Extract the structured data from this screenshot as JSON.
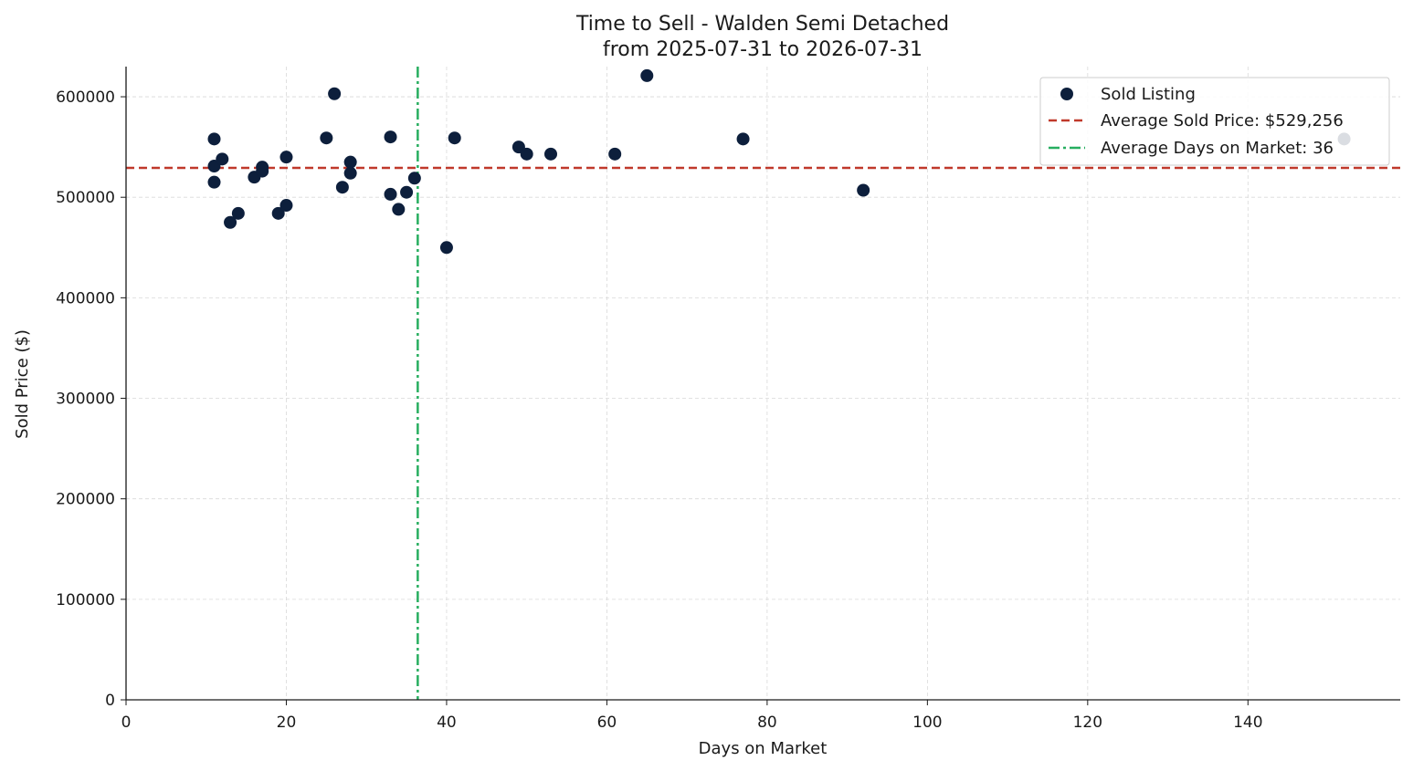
{
  "chart_data": {
    "type": "scatter",
    "title": "Time to Sell - Walden Semi Detached",
    "subtitle": "from 2025-07-31 to 2026-07-31",
    "xlabel": "Days on Market",
    "ylabel": "Sold Price ($)",
    "xlim": [
      0,
      159
    ],
    "ylim": [
      0,
      630000
    ],
    "xticks": [
      0,
      20,
      40,
      60,
      80,
      100,
      120,
      140
    ],
    "yticks": [
      0,
      100000,
      200000,
      300000,
      400000,
      500000,
      600000
    ],
    "xtick_labels": [
      "0",
      "20",
      "40",
      "60",
      "80",
      "100",
      "120",
      "140"
    ],
    "ytick_labels": [
      "0",
      "100000",
      "200000",
      "300000",
      "400000",
      "500000",
      "600000"
    ],
    "grid": true,
    "legend_position": "top-right",
    "colors": {
      "points": "#0d1f3c",
      "avg_price_line": "#c0392b",
      "avg_days_line": "#27ae60",
      "grid": "#d9d9d9",
      "axis": "#1a1a1a"
    },
    "series": [
      {
        "name": "Sold Listing",
        "points": [
          [
            11,
            558000
          ],
          [
            11,
            531000
          ],
          [
            11,
            515000
          ],
          [
            12,
            538000
          ],
          [
            13,
            475000
          ],
          [
            14,
            484000
          ],
          [
            16,
            520000
          ],
          [
            17,
            530000
          ],
          [
            17,
            526000
          ],
          [
            19,
            484000
          ],
          [
            20,
            540000
          ],
          [
            20,
            492000
          ],
          [
            25,
            559000
          ],
          [
            26,
            603000
          ],
          [
            27,
            510000
          ],
          [
            28,
            535000
          ],
          [
            28,
            524000
          ],
          [
            33,
            560000
          ],
          [
            33,
            503000
          ],
          [
            34,
            488000
          ],
          [
            35,
            505000
          ],
          [
            36,
            519000
          ],
          [
            40,
            450000
          ],
          [
            41,
            559000
          ],
          [
            49,
            550000
          ],
          [
            50,
            543000
          ],
          [
            53,
            543000
          ],
          [
            61,
            543000
          ],
          [
            65,
            621000
          ],
          [
            77,
            558000
          ],
          [
            92,
            507000
          ],
          [
            152,
            558000
          ]
        ]
      }
    ],
    "reference_lines": [
      {
        "name": "Average Sold Price: $529,256",
        "orientation": "horizontal",
        "value": 529256,
        "style": "dashed"
      },
      {
        "name": "Average Days on Market: 36",
        "orientation": "vertical",
        "value": 36.4,
        "style": "dashdot"
      }
    ]
  }
}
